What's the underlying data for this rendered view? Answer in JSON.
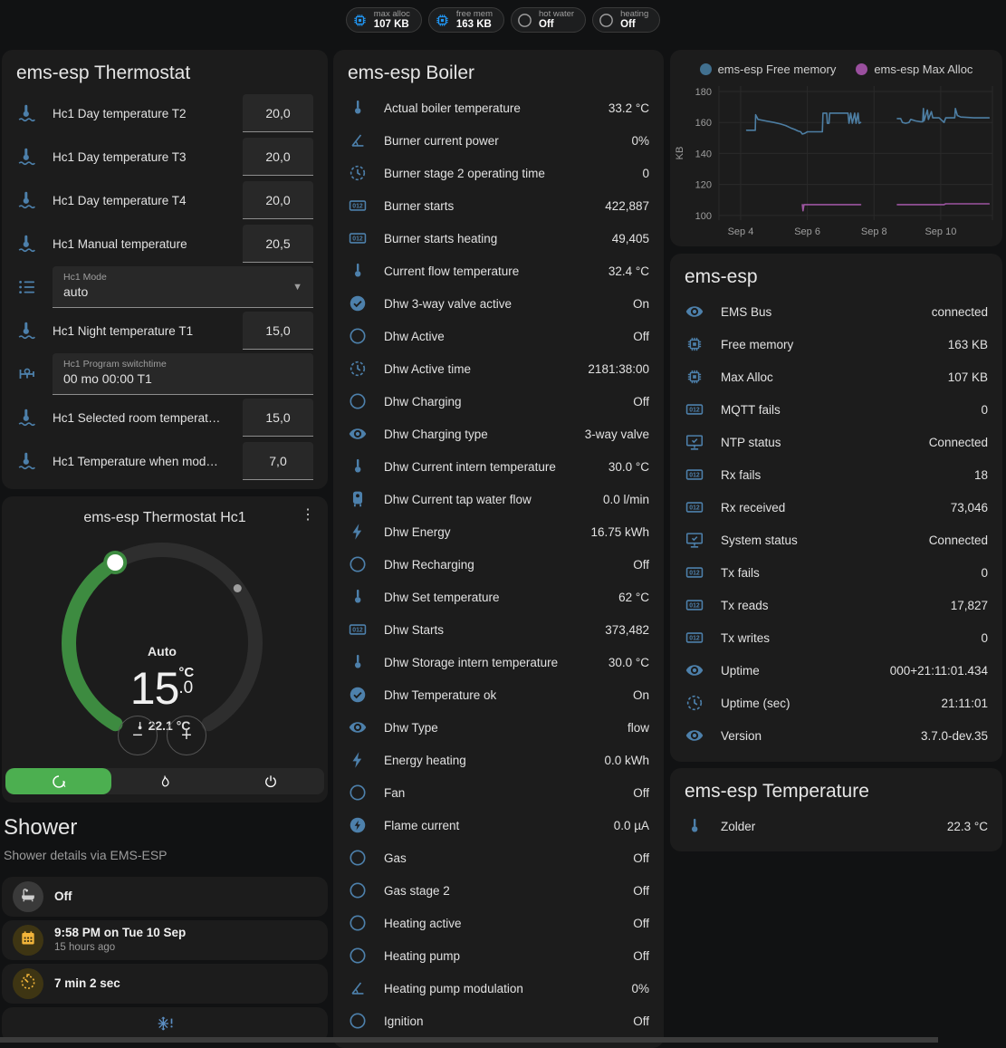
{
  "chips": [
    {
      "label": "max alloc",
      "value": "107 KB",
      "icon": "memory",
      "icon_color": "#2196f3"
    },
    {
      "label": "free mem",
      "value": "163 KB",
      "icon": "memory",
      "icon_color": "#2196f3"
    },
    {
      "label": "hot water",
      "value": "Off",
      "icon": "circle-outline",
      "icon_color": "#9e9e9e"
    },
    {
      "label": "heating",
      "value": "Off",
      "icon": "circle-outline",
      "icon_color": "#9e9e9e"
    }
  ],
  "thermostat_card": {
    "title": "ems-esp Thermostat",
    "rows": [
      {
        "type": "number",
        "icon": "thermometer-water",
        "label": "Hc1 Day temperature T2",
        "value": "20,0"
      },
      {
        "type": "number",
        "icon": "thermometer-water",
        "label": "Hc1 Day temperature T3",
        "value": "20,0"
      },
      {
        "type": "number",
        "icon": "thermometer-water",
        "label": "Hc1 Day temperature T4",
        "value": "20,0"
      },
      {
        "type": "number",
        "icon": "thermometer-water",
        "label": "Hc1 Manual temperature",
        "value": "20,5"
      },
      {
        "type": "select",
        "icon": "format-list",
        "label": "Hc1 Mode",
        "value": "auto"
      },
      {
        "type": "number",
        "icon": "thermometer-water",
        "label": "Hc1 Night temperature T1",
        "value": "15,0"
      },
      {
        "type": "text",
        "icon": "pipe-valve",
        "label": "Hc1 Program switchtime",
        "value": "00 mo 00:00 T1"
      },
      {
        "type": "number",
        "icon": "thermometer-water",
        "label": "Hc1 Selected room temperat…",
        "value": "15,0"
      },
      {
        "type": "number",
        "icon": "thermometer-water",
        "label": "Hc1 Temperature when mod…",
        "value": "7,0"
      }
    ]
  },
  "hc1_card": {
    "title": "ems-esp Thermostat Hc1",
    "mode": "Auto",
    "target_int": "15",
    "target_unit": "°C",
    "target_dec": ".0",
    "current": "22.1 °C",
    "accent_green": "#4caf50",
    "arc_green": "#3d8b40"
  },
  "shower": {
    "heading": "Shower",
    "subheading": "Shower details via EMS-ESP",
    "cards": [
      {
        "icon": "bathtub",
        "style": "gray",
        "value": "Off",
        "secondary": ""
      },
      {
        "icon": "calendar",
        "style": "yellow",
        "value": "9:58 PM on Tue 10 Sep",
        "secondary": "15 hours ago"
      },
      {
        "icon": "timer",
        "style": "yellow",
        "value": "7 min 2 sec",
        "secondary": ""
      }
    ],
    "frost_icon": "snowflake-alert"
  },
  "boiler_card": {
    "title": "ems-esp Boiler",
    "rows": [
      {
        "icon": "thermometer",
        "label": "Actual boiler temperature",
        "value": "33.2 °C"
      },
      {
        "icon": "angle-acute",
        "label": "Burner current power",
        "value": "0%"
      },
      {
        "icon": "clock",
        "label": "Burner stage 2 operating time",
        "value": "0"
      },
      {
        "icon": "counter",
        "label": "Burner starts",
        "value": "422,887"
      },
      {
        "icon": "counter",
        "label": "Burner starts heating",
        "value": "49,405"
      },
      {
        "icon": "thermometer",
        "label": "Current flow temperature",
        "value": "32.4 °C"
      },
      {
        "icon": "check-circle",
        "label": "Dhw 3-way valve active",
        "value": "On"
      },
      {
        "icon": "circle-outline",
        "label": "Dhw Active",
        "value": "Off"
      },
      {
        "icon": "clock",
        "label": "Dhw Active time",
        "value": "2181:38:00"
      },
      {
        "icon": "circle-outline",
        "label": "Dhw Charging",
        "value": "Off"
      },
      {
        "icon": "eye",
        "label": "Dhw Charging type",
        "value": "3-way valve"
      },
      {
        "icon": "thermometer",
        "label": "Dhw Current intern temperature",
        "value": "30.0 °C"
      },
      {
        "icon": "water-boiler",
        "label": "Dhw Current tap water flow",
        "value": "0.0 l/min"
      },
      {
        "icon": "flash",
        "label": "Dhw Energy",
        "value": "16.75 kWh"
      },
      {
        "icon": "circle-outline",
        "label": "Dhw Recharging",
        "value": "Off"
      },
      {
        "icon": "thermometer",
        "label": "Dhw Set temperature",
        "value": "62 °C"
      },
      {
        "icon": "counter",
        "label": "Dhw Starts",
        "value": "373,482"
      },
      {
        "icon": "thermometer",
        "label": "Dhw Storage intern temperature",
        "value": "30.0 °C"
      },
      {
        "icon": "check-circle",
        "label": "Dhw Temperature ok",
        "value": "On"
      },
      {
        "icon": "eye",
        "label": "Dhw Type",
        "value": "flow"
      },
      {
        "icon": "flash",
        "label": "Energy heating",
        "value": "0.0 kWh"
      },
      {
        "icon": "circle-outline",
        "label": "Fan",
        "value": "Off"
      },
      {
        "icon": "flash-circle",
        "label": "Flame current",
        "value": "0.0 µA"
      },
      {
        "icon": "circle-outline",
        "label": "Gas",
        "value": "Off"
      },
      {
        "icon": "circle-outline",
        "label": "Gas stage 2",
        "value": "Off"
      },
      {
        "icon": "circle-outline",
        "label": "Heating active",
        "value": "Off"
      },
      {
        "icon": "circle-outline",
        "label": "Heating pump",
        "value": "Off"
      },
      {
        "icon": "angle-acute",
        "label": "Heating pump modulation",
        "value": "0%"
      },
      {
        "icon": "circle-outline",
        "label": "Ignition",
        "value": "Off"
      }
    ]
  },
  "system_card": {
    "title": "ems-esp",
    "rows": [
      {
        "icon": "eye",
        "label": "EMS Bus",
        "value": "connected"
      },
      {
        "icon": "memory",
        "label": "Free memory",
        "value": "163 KB"
      },
      {
        "icon": "memory",
        "label": "Max Alloc",
        "value": "107 KB"
      },
      {
        "icon": "counter",
        "label": "MQTT fails",
        "value": "0"
      },
      {
        "icon": "monitor-check",
        "label": "NTP status",
        "value": "Connected"
      },
      {
        "icon": "counter",
        "label": "Rx fails",
        "value": "18"
      },
      {
        "icon": "counter",
        "label": "Rx received",
        "value": "73,046"
      },
      {
        "icon": "monitor-check",
        "label": "System status",
        "value": "Connected"
      },
      {
        "icon": "counter",
        "label": "Tx fails",
        "value": "0"
      },
      {
        "icon": "counter",
        "label": "Tx reads",
        "value": "17,827"
      },
      {
        "icon": "counter",
        "label": "Tx writes",
        "value": "0"
      },
      {
        "icon": "eye",
        "label": "Uptime",
        "value": "000+21:11:01.434"
      },
      {
        "icon": "clock",
        "label": "Uptime (sec)",
        "value": "21:11:01"
      },
      {
        "icon": "eye",
        "label": "Version",
        "value": "3.7.0-dev.35"
      }
    ]
  },
  "temperature_card": {
    "title": "ems-esp Temperature",
    "rows": [
      {
        "icon": "thermometer",
        "label": "Zolder",
        "value": "22.3 °C"
      }
    ]
  },
  "chart_data": {
    "type": "line",
    "title": "",
    "xlabel": "",
    "ylabel": "KB",
    "grid": true,
    "legend_position": "top",
    "xlim": [
      3.35,
      11.55
    ],
    "ylim": [
      97,
      183.5
    ],
    "yticks": [
      100,
      120,
      140,
      160,
      180
    ],
    "xticks": [
      {
        "x": 4,
        "label": "Sep 4"
      },
      {
        "x": 6,
        "label": "Sep 6"
      },
      {
        "x": 8,
        "label": "Sep 8"
      },
      {
        "x": 10,
        "label": "Sep 10"
      }
    ],
    "series": [
      {
        "name": "ems-esp Free memory",
        "color": "#4d7ea3",
        "dot_color": "#41708f",
        "segments": [
          [
            [
              4.18,
              155
            ],
            [
              4.44,
              155
            ],
            [
              4.45,
              165
            ],
            [
              4.52,
              162
            ],
            [
              4.75,
              161
            ],
            [
              5.0,
              160
            ],
            [
              5.2,
              159
            ],
            [
              5.35,
              158
            ],
            [
              5.5,
              156.5
            ],
            [
              5.62,
              155.5
            ],
            [
              5.72,
              154.5
            ],
            [
              5.8,
              154
            ],
            [
              5.85,
              152.5
            ],
            [
              5.92,
              153
            ],
            [
              6.0,
              154
            ],
            [
              6.45,
              154
            ],
            [
              6.47,
              166
            ],
            [
              6.58,
              166
            ],
            [
              6.6,
              159.5
            ],
            [
              6.65,
              159.5
            ],
            [
              6.67,
              166
            ],
            [
              7.22,
              166
            ],
            [
              7.25,
              159.5
            ],
            [
              7.3,
              166
            ],
            [
              7.35,
              159.5
            ],
            [
              7.42,
              166
            ],
            [
              7.46,
              159.5
            ],
            [
              7.52,
              166
            ],
            [
              7.55,
              159.5
            ],
            [
              7.6,
              160
            ]
          ],
          [
            [
              8.7,
              162.5
            ],
            [
              8.8,
              162.5
            ],
            [
              8.85,
              160
            ],
            [
              8.95,
              159.5
            ],
            [
              9.05,
              160
            ],
            [
              9.1,
              162
            ],
            [
              9.25,
              161
            ],
            [
              9.4,
              160.5
            ],
            [
              9.46,
              160.5
            ],
            [
              9.48,
              169
            ],
            [
              9.5,
              161
            ],
            [
              9.6,
              168
            ],
            [
              9.63,
              162
            ],
            [
              9.72,
              167
            ],
            [
              9.76,
              163
            ],
            [
              9.95,
              163
            ],
            [
              10.1,
              160
            ],
            [
              10.15,
              163
            ],
            [
              10.42,
              163
            ],
            [
              10.44,
              169
            ],
            [
              10.5,
              164.5
            ],
            [
              10.6,
              163.5
            ],
            [
              11.0,
              163
            ],
            [
              11.45,
              163
            ]
          ]
        ]
      },
      {
        "name": "ems-esp Max Alloc",
        "color": "#9c55a0",
        "dot_color": "#9a4f9e",
        "segments": [
          [
            [
              5.85,
              107
            ],
            [
              5.87,
              103
            ],
            [
              5.9,
              107
            ],
            [
              7.6,
              107
            ]
          ],
          [
            [
              8.7,
              107
            ],
            [
              10.1,
              107
            ],
            [
              10.15,
              107.5
            ],
            [
              11.45,
              107.5
            ]
          ]
        ]
      }
    ]
  }
}
